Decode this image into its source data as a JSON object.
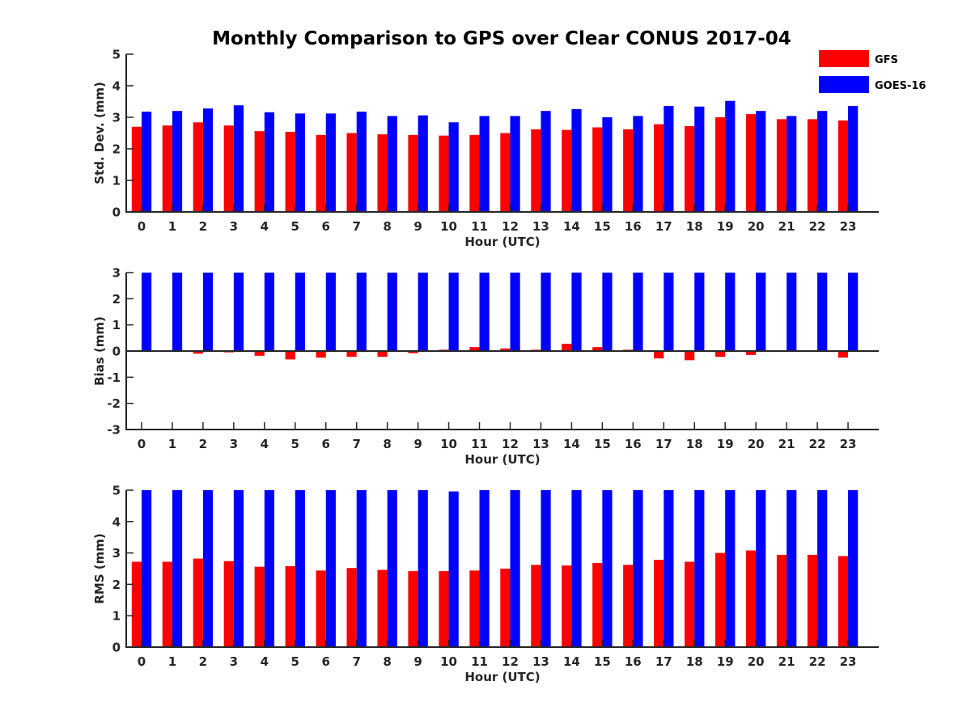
{
  "chart_data": {
    "title": "Monthly Comparison to GPS over Clear CONUS 2017-04",
    "type": "bar",
    "legend": {
      "placement": "top-right",
      "entries": [
        "GFS",
        "GOES-16"
      ]
    },
    "colors": {
      "GFS": "#ff0000",
      "GOES-16": "#0000ff"
    },
    "panels": [
      {
        "type": "bar",
        "xlabel": "Hour (UTC)",
        "ylabel": "Std. Dev. (mm)",
        "ylim": [
          0,
          5
        ],
        "yticks": [
          "0",
          "1",
          "2",
          "3",
          "4",
          "5"
        ],
        "categories": [
          "0",
          "1",
          "2",
          "3",
          "4",
          "5",
          "6",
          "7",
          "8",
          "9",
          "10",
          "11",
          "12",
          "13",
          "14",
          "15",
          "16",
          "17",
          "18",
          "19",
          "20",
          "21",
          "22",
          "23"
        ],
        "series": [
          {
            "name": "GFS",
            "values": [
              2.7,
              2.74,
              2.84,
              2.74,
              2.56,
              2.54,
              2.44,
              2.5,
              2.46,
              2.44,
              2.42,
              2.44,
              2.5,
              2.62,
              2.6,
              2.68,
              2.62,
              2.78,
              2.72,
              3.0,
              3.1,
              2.94,
              2.94,
              2.9
            ]
          },
          {
            "name": "GOES-16",
            "values": [
              3.18,
              3.2,
              3.28,
              3.38,
              3.16,
              3.12,
              3.12,
              3.18,
              3.04,
              3.06,
              2.84,
              3.04,
              3.04,
              3.2,
              3.26,
              3.0,
              3.04,
              3.36,
              3.34,
              3.52,
              3.2,
              3.04,
              3.2,
              3.36
            ]
          }
        ]
      },
      {
        "type": "bar",
        "xlabel": "Hour (UTC)",
        "ylabel": "Bias (mm)",
        "ylim": [
          -3,
          3
        ],
        "yticks": [
          "-3",
          "-2",
          "-1",
          "0",
          "1",
          "2",
          "3"
        ],
        "categories": [
          "0",
          "1",
          "2",
          "3",
          "4",
          "5",
          "6",
          "7",
          "8",
          "9",
          "10",
          "11",
          "12",
          "13",
          "14",
          "15",
          "16",
          "17",
          "18",
          "19",
          "20",
          "21",
          "22",
          "23"
        ],
        "series": [
          {
            "name": "GFS",
            "values": [
              0.0,
              0.0,
              -0.1,
              -0.05,
              -0.18,
              -0.32,
              -0.25,
              -0.22,
              -0.22,
              -0.08,
              0.05,
              0.15,
              0.1,
              0.05,
              0.28,
              0.15,
              0.05,
              -0.28,
              -0.35,
              -0.22,
              -0.15,
              -0.03,
              -0.03,
              -0.25
            ]
          },
          {
            "name": "GOES-16",
            "values": [
              3,
              3,
              3,
              3,
              3,
              3,
              3,
              3,
              3,
              3,
              3,
              3,
              3,
              3,
              3,
              3,
              3,
              3,
              3,
              3,
              3,
              3,
              3,
              3
            ]
          }
        ]
      },
      {
        "type": "bar",
        "xlabel": "Hour (UTC)",
        "ylabel": "RMS (mm)",
        "ylim": [
          0,
          5
        ],
        "yticks": [
          "0",
          "1",
          "2",
          "3",
          "4",
          "5"
        ],
        "categories": [
          "0",
          "1",
          "2",
          "3",
          "4",
          "5",
          "6",
          "7",
          "8",
          "9",
          "10",
          "11",
          "12",
          "13",
          "14",
          "15",
          "16",
          "17",
          "18",
          "19",
          "20",
          "21",
          "22",
          "23"
        ],
        "series": [
          {
            "name": "GFS",
            "values": [
              2.72,
              2.72,
              2.82,
              2.74,
              2.56,
              2.58,
              2.44,
              2.52,
              2.46,
              2.42,
              2.42,
              2.44,
              2.5,
              2.62,
              2.6,
              2.68,
              2.62,
              2.78,
              2.72,
              3.0,
              3.08,
              2.94,
              2.94,
              2.9
            ]
          },
          {
            "name": "GOES-16",
            "values": [
              5,
              5,
              5,
              5,
              5,
              5,
              5,
              5,
              5,
              5,
              4.96,
              5,
              5,
              5,
              5,
              5,
              5,
              5,
              5,
              5,
              5,
              5,
              5,
              5
            ]
          }
        ]
      }
    ]
  }
}
